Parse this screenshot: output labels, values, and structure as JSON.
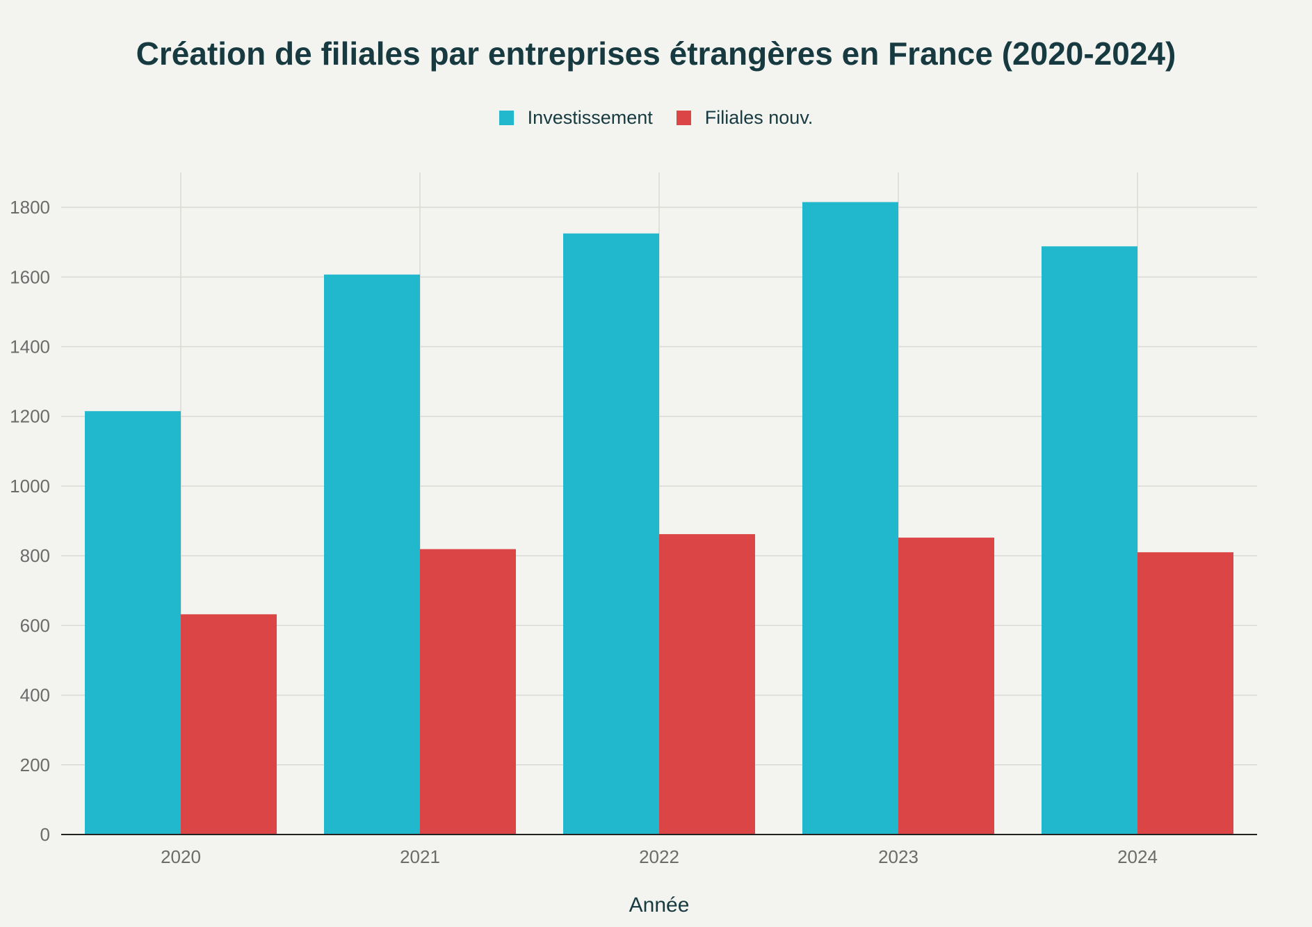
{
  "chart_data": {
    "type": "bar",
    "title": "Création de filiales par entreprises étrangères en France (2020-2024)",
    "xlabel": "Année",
    "ylabel": "",
    "categories": [
      "2020",
      "2021",
      "2022",
      "2023",
      "2024"
    ],
    "series": [
      {
        "name": "Investissement",
        "color": "#21b8cd",
        "values": [
          1215,
          1607,
          1725,
          1815,
          1688
        ]
      },
      {
        "name": "Filiales nouv.",
        "color": "#db4545",
        "values": [
          632,
          819,
          862,
          852,
          810
        ]
      }
    ],
    "ylim": [
      0,
      1900
    ],
    "yticks": [
      0,
      200,
      400,
      600,
      800,
      1000,
      1200,
      1400,
      1600,
      1800
    ],
    "grid": true,
    "legend_position": "top-center"
  }
}
